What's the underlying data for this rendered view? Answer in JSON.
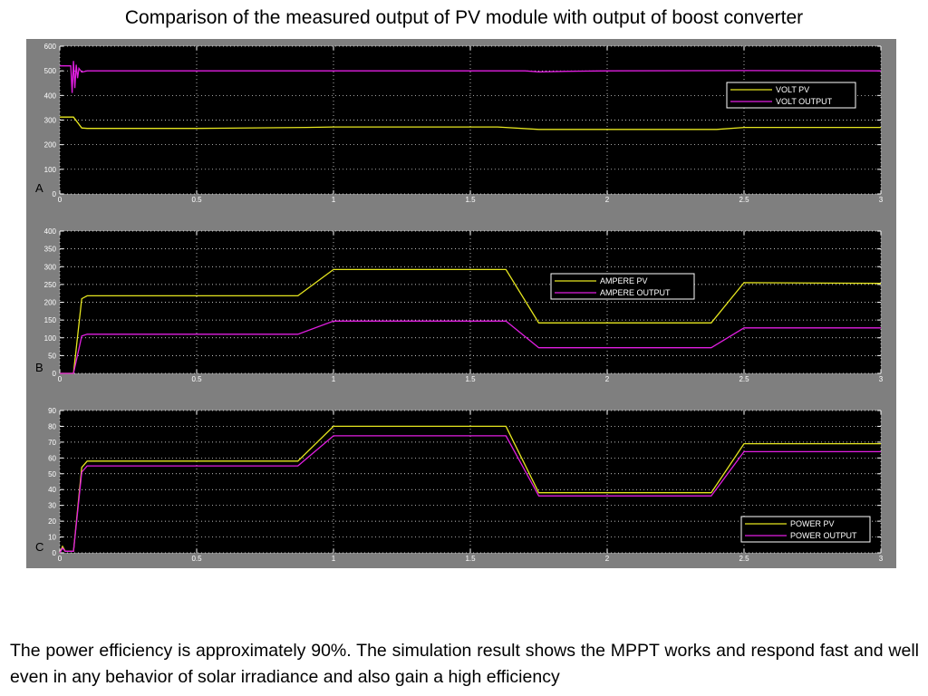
{
  "slide": {
    "title": "Comparison of the measured output of PV module with output of boost converter",
    "caption": "The power efficiency is approximately 90%. The simulation result shows the MPPT works and respond fast and well even in any behavior of solar irradiance and also gain a high efficiency"
  },
  "colors": {
    "figure_bg": "#7f7f7f",
    "plot_bg": "#000000",
    "axis_text": "#ffffff",
    "grid": "#ffffff",
    "pv": "#e6e61f",
    "output": "#e11ee1"
  },
  "chart_data": [
    {
      "type": "line",
      "panel_label": "A",
      "xlim": [
        0,
        3
      ],
      "ylim": [
        0,
        600
      ],
      "x_ticks": [
        "0",
        "0.5",
        "1",
        "1.5",
        "2",
        "2.5",
        "3"
      ],
      "y_ticks": [
        "0",
        "100",
        "200",
        "300",
        "400",
        "500",
        "600"
      ],
      "grid": true,
      "legend_position": "top-right",
      "series": [
        {
          "name": "VOLT PV",
          "color": "#e6e61f",
          "x": [
            0,
            0.05,
            0.08,
            0.1,
            0.5,
            0.9,
            1.0,
            1.6,
            1.75,
            2.4,
            2.5,
            3.0
          ],
          "y": [
            312,
            312,
            268,
            266,
            266,
            270,
            272,
            272,
            262,
            262,
            270,
            270
          ]
        },
        {
          "name": "VOLT OUTPUT",
          "color": "#e11ee1",
          "x": [
            0,
            0.04,
            0.045,
            0.05,
            0.055,
            0.06,
            0.065,
            0.07,
            0.08,
            0.1,
            1.7,
            1.75,
            1.85,
            2.0,
            2.5,
            3.0
          ],
          "y": [
            520,
            520,
            410,
            540,
            430,
            525,
            470,
            510,
            495,
            500,
            500,
            496,
            498,
            500,
            501,
            500
          ]
        }
      ]
    },
    {
      "type": "line",
      "panel_label": "B",
      "xlim": [
        0,
        3
      ],
      "ylim": [
        0,
        400
      ],
      "x_ticks": [
        "0",
        "0.5",
        "1",
        "1.5",
        "2",
        "2.5",
        "3"
      ],
      "y_ticks": [
        "0",
        "50",
        "100",
        "150",
        "200",
        "250",
        "300",
        "350",
        "400"
      ],
      "grid": true,
      "legend_position": "center-right",
      "series": [
        {
          "name": "AMPERE PV",
          "color": "#e6e61f",
          "x": [
            0,
            0.05,
            0.08,
            0.1,
            0.87,
            1.0,
            1.63,
            1.75,
            2.38,
            2.5,
            3.0
          ],
          "y": [
            0,
            0,
            210,
            218,
            218,
            292,
            292,
            142,
            142,
            255,
            253
          ]
        },
        {
          "name": "AMPERE OUTPUT",
          "color": "#e11ee1",
          "x": [
            0,
            0.05,
            0.08,
            0.1,
            0.87,
            1.0,
            1.63,
            1.75,
            2.38,
            2.5,
            3.0
          ],
          "y": [
            0,
            0,
            105,
            110,
            110,
            147,
            147,
            72,
            72,
            128,
            128
          ]
        }
      ]
    },
    {
      "type": "line",
      "panel_label": "C",
      "xlim": [
        0,
        3
      ],
      "ylim": [
        0,
        90
      ],
      "x_ticks": [
        "0",
        "0.5",
        "1",
        "1.5",
        "2",
        "2.5",
        "3"
      ],
      "y_ticks": [
        "0",
        "10",
        "20",
        "30",
        "40",
        "50",
        "60",
        "70",
        "80",
        "90"
      ],
      "grid": true,
      "legend_position": "bottom-right",
      "series": [
        {
          "name": "POWER PV",
          "color": "#e6e61f",
          "x": [
            0,
            0.01,
            0.02,
            0.05,
            0.08,
            0.1,
            0.87,
            1.0,
            1.63,
            1.75,
            2.38,
            2.5,
            3.0
          ],
          "y": [
            0,
            4,
            1,
            1,
            54,
            58,
            58,
            80,
            80,
            38,
            38,
            69,
            69
          ]
        },
        {
          "name": "POWER OUTPUT",
          "color": "#e11ee1",
          "x": [
            0,
            0.01,
            0.02,
            0.05,
            0.08,
            0.1,
            0.87,
            1.0,
            1.63,
            1.75,
            2.38,
            2.5,
            3.0
          ],
          "y": [
            0,
            3,
            1,
            1,
            51,
            55,
            55,
            74,
            74,
            36,
            36,
            64,
            64
          ]
        }
      ]
    }
  ]
}
